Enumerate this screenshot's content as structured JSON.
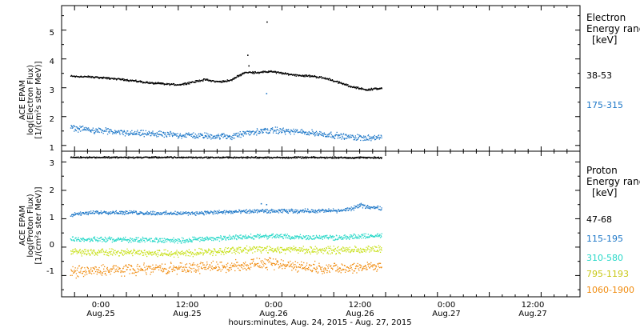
{
  "chart_data": [
    {
      "type": "scatter",
      "panel": "electron",
      "ylabel_lines": [
        "ACE EPAM",
        "log(Electron Flux)",
        "[1/(cm²s ster MeV)]"
      ],
      "yticks": [
        "1",
        "2",
        "3",
        "4",
        "5"
      ],
      "ylim": [
        0.8,
        5.85
      ],
      "legend_title": [
        "Electron",
        "Energy range",
        "[keV]"
      ],
      "series": [
        {
          "name": "38-53",
          "color": "#000000",
          "profile_hours": [
            0,
            10,
            20,
            30,
            40,
            45,
            50,
            55,
            60,
            62,
            65,
            70,
            75,
            80,
            85,
            90,
            95,
            100,
            105,
            110,
            116
          ],
          "profile_values": [
            3.42,
            3.38,
            3.3,
            3.18,
            3.12,
            3.2,
            3.3,
            3.22,
            3.28,
            3.4,
            3.55,
            3.55,
            3.58,
            3.5,
            3.45,
            3.42,
            3.35,
            3.2,
            3.05,
            2.95,
            3.0
          ],
          "spread": 0.03,
          "outliers": [
            {
              "hour": 66.0,
              "value": 4.15
            },
            {
              "hour": 66.4,
              "value": 3.78
            },
            {
              "hour": 73.2,
              "value": 5.3
            }
          ]
        },
        {
          "name": "175-315",
          "color": "#1f78c8",
          "profile_hours": [
            0,
            20,
            40,
            60,
            66,
            75,
            90,
            105,
            116
          ],
          "profile_values": [
            1.62,
            1.45,
            1.38,
            1.32,
            1.45,
            1.55,
            1.45,
            1.3,
            1.28
          ],
          "spread": 0.09,
          "outliers": [
            {
              "hour": 73.0,
              "value": 2.82
            }
          ]
        }
      ]
    },
    {
      "type": "scatter",
      "panel": "proton",
      "ylabel_lines": [
        "ACE EPAM",
        "log(Proton Flux)",
        "[1/(cm²s ster MeV)]"
      ],
      "yticks": [
        "-1",
        "0",
        "1",
        "2",
        "3"
      ],
      "ylim": [
        -1.75,
        3.38
      ],
      "legend_title": [
        "Proton",
        "Energy range",
        "[keV]"
      ],
      "series": [
        {
          "name": "47-68",
          "color": "#000000",
          "profile_hours": [
            0,
            116
          ],
          "profile_values": [
            3.18,
            3.17
          ],
          "spread": 0.025,
          "outliers": []
        },
        {
          "name": "115-195",
          "color": "#1f78c8",
          "profile_hours": [
            0,
            10,
            40,
            70,
            100,
            104,
            108,
            116
          ],
          "profile_values": [
            1.15,
            1.25,
            1.2,
            1.28,
            1.3,
            1.35,
            1.48,
            1.38
          ],
          "spread": 0.06,
          "outliers": [
            {
              "hour": 71.0,
              "value": 1.55
            },
            {
              "hour": 73.0,
              "value": 1.52
            }
          ]
        },
        {
          "name": "310-580",
          "color": "#27d8c8",
          "profile_hours": [
            0,
            40,
            70,
            100,
            116
          ],
          "profile_values": [
            0.3,
            0.25,
            0.4,
            0.35,
            0.42
          ],
          "spread": 0.08,
          "outliers": []
        },
        {
          "name": "795-1193",
          "color": "#c8e01a",
          "profile_hours": [
            0,
            40,
            70,
            100,
            116
          ],
          "profile_values": [
            -0.15,
            -0.2,
            -0.05,
            -0.1,
            -0.05
          ],
          "spread": 0.11,
          "outliers": []
        },
        {
          "name": "1060-1900",
          "color": "#f08c10",
          "profile_hours": [
            0,
            30,
            60,
            70,
            90,
            100,
            116
          ],
          "profile_values": [
            -0.85,
            -0.75,
            -0.65,
            -0.55,
            -0.7,
            -0.75,
            -0.62
          ],
          "spread": 0.17,
          "outliers": []
        }
      ]
    }
  ],
  "x_axis": {
    "start": "Aug. 24, 2015 09:00",
    "end": "Aug. 27, 2015 21:00",
    "data_span": [
      "Aug. 24, 2015 11:00",
      "Aug. 27, 2015 11:00"
    ],
    "ticks": [
      {
        "hours": 15,
        "time": "0:00",
        "date": "Aug.25"
      },
      {
        "hours": 27,
        "time": "12:00",
        "date": "Aug.25"
      },
      {
        "hours": 39,
        "time": "0:00",
        "date": "Aug.26"
      },
      {
        "hours": 51,
        "time": "12:00",
        "date": "Aug.26"
      },
      {
        "hours": 63,
        "time": "0:00",
        "date": "Aug.27"
      },
      {
        "hours": 75,
        "time": "12:00",
        "date": "Aug.27"
      }
    ],
    "label": "hours:minutes, Aug. 24, 2015 - Aug. 27, 2015"
  }
}
